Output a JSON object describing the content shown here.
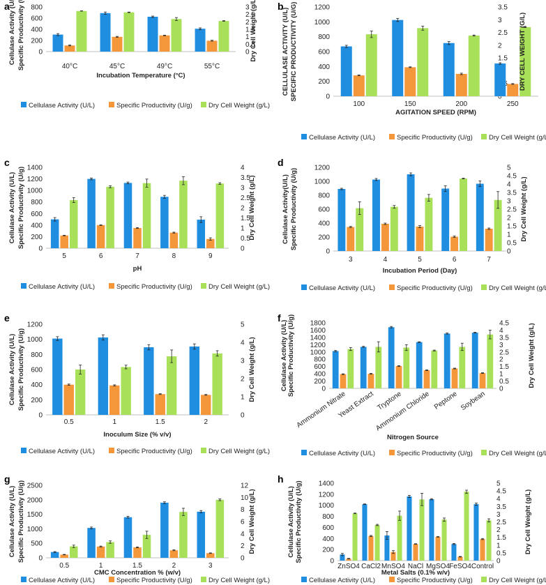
{
  "colors": {
    "cellulase": "#1f8de0",
    "productivity": "#f4963a",
    "dcw": "#a8e05a",
    "axis": "#bfbfbf",
    "err": "#222222"
  },
  "legend": [
    "Cellulase Activity (U/L)",
    "Specific Productivity (U/g)",
    "Dry Cell Weight (g/L)"
  ],
  "chart_data": [
    {
      "type": "bar",
      "panel": "a",
      "categories": [
        "40°C",
        "45°C",
        "49°C",
        "55°C"
      ],
      "xlabel": "Incubation Temperature (°C)",
      "ylabel_left": [
        "Cellulase Activity (U/L)",
        "Specific Productivity (U/g)"
      ],
      "ylabel_right": "Dry Cell Weight (g/L)",
      "ylim_left": [
        0,
        800
      ],
      "yticks_left": [
        "0",
        "200",
        "400",
        "600",
        "800"
      ],
      "ylim_right": [
        0,
        3
      ],
      "yticks_right": [
        "0",
        "0.5",
        "1",
        "1.5",
        "2",
        "2.5",
        "3"
      ],
      "series": [
        {
          "name": "Cellulase Activity (U/L)",
          "axis": "left",
          "values": [
            305,
            690,
            625,
            410
          ],
          "errors": [
            18,
            20,
            12,
            15
          ]
        },
        {
          "name": "Specific Productivity (U/g)",
          "axis": "left",
          "values": [
            110,
            265,
            290,
            195
          ],
          "errors": [
            8,
            8,
            5,
            8
          ]
        },
        {
          "name": "Dry Cell Weight (g/L)",
          "axis": "right",
          "values": [
            2.73,
            2.64,
            2.19,
            2.06
          ],
          "errors": [
            0.01,
            0.02,
            0.1,
            0.02
          ]
        }
      ]
    },
    {
      "type": "bar",
      "panel": "b",
      "categories": [
        "100",
        "150",
        "200",
        "250"
      ],
      "xlabel": "AGITATION SPEED (RPM)",
      "ylabel_left": [
        "CELLULASE ACTIVITY (U/L)",
        "SPECIFIC PRODUCTIVITY (U/G)"
      ],
      "ylabel_right": "DRY CELL WEIGHT (G/L)",
      "ylim_left": [
        0,
        1200
      ],
      "yticks_left": [
        "0",
        "200",
        "400",
        "600",
        "800",
        "1000",
        "1200"
      ],
      "ylim_right": [
        0,
        3.5
      ],
      "yticks_right": [
        "0",
        "0.5",
        "1",
        "1.5",
        "2",
        "2.5",
        "3",
        "3.5"
      ],
      "series": [
        {
          "name": "Cellulase Activity (U/L)",
          "axis": "left",
          "values": [
            670,
            1025,
            715,
            440
          ],
          "errors": [
            15,
            20,
            20,
            10
          ]
        },
        {
          "name": "Specific Productivity (U/g)",
          "axis": "left",
          "values": [
            280,
            390,
            300,
            165
          ],
          "errors": [
            5,
            5,
            10,
            5
          ]
        },
        {
          "name": "Dry Cell Weight (g/L)",
          "axis": "right",
          "values": [
            2.43,
            2.67,
            2.38,
            2.71
          ],
          "errors": [
            0.13,
            0.08,
            0.02,
            0.02
          ]
        }
      ]
    },
    {
      "type": "bar",
      "panel": "c",
      "categories": [
        "5",
        "6",
        "7",
        "8",
        "9"
      ],
      "xlabel": "pH",
      "ylabel_left": [
        "Cellulase Activity (U/L)",
        "Specific Productivity (U/g)"
      ],
      "ylabel_right": "Dry Cell Weight (g/L)",
      "ylim_left": [
        0,
        1400
      ],
      "yticks_left": [
        "0",
        "200",
        "400",
        "600",
        "800",
        "1000",
        "1200",
        "1400"
      ],
      "ylim_right": [
        0,
        4
      ],
      "yticks_right": [
        "0",
        "0.5",
        "1",
        "1.5",
        "2",
        "2.5",
        "3",
        "3.5",
        "4"
      ],
      "series": [
        {
          "name": "Cellulase Activity (U/L)",
          "axis": "left",
          "values": [
            500,
            1200,
            1130,
            890,
            495
          ],
          "errors": [
            30,
            15,
            15,
            25,
            50
          ]
        },
        {
          "name": "Specific Productivity (U/g)",
          "axis": "left",
          "values": [
            220,
            400,
            350,
            270,
            160
          ],
          "errors": [
            5,
            5,
            8,
            8,
            20
          ]
        },
        {
          "name": "Dry Cell Weight (g/L)",
          "axis": "right",
          "values": [
            2.38,
            3.04,
            3.22,
            3.34,
            3.2
          ],
          "errors": [
            0.12,
            0.05,
            0.2,
            0.2,
            0.04
          ]
        }
      ]
    },
    {
      "type": "bar",
      "panel": "d",
      "categories": [
        "3",
        "4",
        "5",
        "6",
        "7"
      ],
      "xlabel": "Incubation Period (Day)",
      "ylabel_left": [
        "Cellulase Activity(U/L)",
        "Specific Productivity (U/g)"
      ],
      "ylabel_right": "Dry Cell Weight (g/L)",
      "ylim_left": [
        0,
        1200
      ],
      "yticks_left": [
        "0",
        "200",
        "400",
        "600",
        "800",
        "1000",
        "1200"
      ],
      "ylim_right": [
        0,
        5
      ],
      "yticks_right": [
        "0",
        "0.5",
        "1",
        "1.5",
        "2",
        "2.5",
        "3",
        "3.5",
        "4",
        "4.5",
        "5"
      ],
      "series": [
        {
          "name": "Cellulase Activity (U/L)",
          "axis": "left",
          "values": [
            890,
            1025,
            1100,
            895,
            965
          ],
          "errors": [
            10,
            15,
            20,
            40,
            40
          ]
        },
        {
          "name": "Specific Productivity (U/g)",
          "axis": "left",
          "values": [
            345,
            390,
            350,
            205,
            320
          ],
          "errors": [
            8,
            10,
            15,
            10,
            10
          ]
        },
        {
          "name": "Dry Cell Weight (g/L)",
          "axis": "right",
          "values": [
            2.56,
            2.64,
            3.18,
            4.33,
            3.05
          ],
          "errors": [
            0.38,
            0.08,
            0.2,
            0.02,
            0.5
          ]
        }
      ]
    },
    {
      "type": "bar",
      "panel": "e",
      "categories": [
        "0.5",
        "1",
        "1.5",
        "2"
      ],
      "xlabel": "Inoculum Size (% v/v)",
      "ylabel_left": [
        "Cellulase Activity (U/L)",
        "Specific Productivity (U/g)"
      ],
      "ylabel_right": "Dry Cell Weight (g/L)",
      "ylim_left": [
        0,
        1200
      ],
      "yticks_left": [
        "0",
        "200",
        "400",
        "600",
        "800",
        "1000",
        "1200"
      ],
      "ylim_right": [
        0,
        5
      ],
      "yticks_right": [
        "0",
        "1",
        "2",
        "3",
        "4",
        "5"
      ],
      "series": [
        {
          "name": "Cellulase Activity (U/L)",
          "axis": "left",
          "values": [
            1010,
            1025,
            895,
            905
          ],
          "errors": [
            25,
            35,
            35,
            35
          ]
        },
        {
          "name": "Specific Productivity (U/g)",
          "axis": "left",
          "values": [
            400,
            390,
            275,
            265
          ],
          "errors": [
            8,
            8,
            5,
            5
          ]
        },
        {
          "name": "Dry Cell Weight (g/L)",
          "axis": "right",
          "values": [
            2.5,
            2.64,
            3.23,
            3.39
          ],
          "errors": [
            0.25,
            0.1,
            0.35,
            0.15
          ]
        }
      ]
    },
    {
      "type": "bar",
      "panel": "f",
      "categories": [
        "Ammonium Nitrate",
        "Yeast Extract",
        "Tryptone",
        "Ammonium Chloride",
        "Peptone",
        "Soybean"
      ],
      "xlabel": "Nitrogen Source",
      "ylabel_left": [
        "Cellulase Activity (U/L)",
        "Specific Productivity (U/g)"
      ],
      "ylabel_right": "Dry Cell Weight (g/L)",
      "ylim_left": [
        0,
        1800
      ],
      "yticks_left": [
        "0",
        "200",
        "400",
        "600",
        "800",
        "1000",
        "1200",
        "1400",
        "1600",
        "1800"
      ],
      "ylim_right": [
        0,
        4.5
      ],
      "yticks_right": [
        "0",
        "0.5",
        "1",
        "1.5",
        "2",
        "2.5",
        "3",
        "3.5",
        "4",
        "4.5"
      ],
      "series": [
        {
          "name": "Cellulase Activity (U/L)",
          "axis": "left",
          "values": [
            1025,
            1140,
            1680,
            1270,
            1505,
            1530
          ],
          "errors": [
            15,
            15,
            20,
            10,
            15,
            10
          ]
        },
        {
          "name": "Specific Productivity (U/g)",
          "axis": "left",
          "values": [
            390,
            400,
            615,
            500,
            545,
            420
          ],
          "errors": [
            10,
            10,
            10,
            10,
            10,
            10
          ]
        },
        {
          "name": "Dry Cell Weight (g/L)",
          "axis": "right",
          "values": [
            2.7,
            2.85,
            2.8,
            2.6,
            2.85,
            3.7
          ],
          "errors": [
            0.1,
            0.35,
            0.2,
            0.03,
            0.25,
            0.3
          ]
        }
      ]
    },
    {
      "type": "bar",
      "panel": "g",
      "categories": [
        "0.5",
        "1",
        "1.5",
        "2",
        "3"
      ],
      "xlabel": "CMC Concentration % (w/v)",
      "ylabel_left": [
        "Cellulase Activity (U/L)",
        "Specific Productivity (U/g)"
      ],
      "ylabel_right": "Dry Cell Weight (g/L)",
      "ylim_left": [
        0,
        2500
      ],
      "yticks_left": [
        "0",
        "500",
        "1000",
        "1500",
        "2000",
        "2500"
      ],
      "ylim_right": [
        0,
        12
      ],
      "yticks_right": [
        "0",
        "2",
        "4",
        "6",
        "8",
        "10",
        "12"
      ],
      "series": [
        {
          "name": "Cellulase Activity (U/L)",
          "axis": "left",
          "values": [
            200,
            1030,
            1400,
            1900,
            1590
          ],
          "errors": [
            15,
            30,
            30,
            30,
            40
          ]
        },
        {
          "name": "Specific Productivity (U/g)",
          "axis": "left",
          "values": [
            110,
            390,
            360,
            260,
            160
          ],
          "errors": [
            8,
            15,
            15,
            15,
            10
          ]
        },
        {
          "name": "Dry Cell Weight (g/L)",
          "axis": "right",
          "values": [
            1.9,
            2.6,
            3.8,
            7.6,
            9.6
          ],
          "errors": [
            0.2,
            0.2,
            0.6,
            0.6,
            0.15
          ]
        }
      ]
    },
    {
      "type": "bar",
      "panel": "h",
      "categories": [
        "ZnSO4",
        "CaCl2",
        "MnSO4",
        "NaCl",
        "MgSO4",
        "FeSO4",
        "Control"
      ],
      "xlabel": "Metal Salts (0.1% w/v)",
      "ylabel_left": [
        "Cellulase Activity (U/L)",
        "Specific Productivity (U/g)"
      ],
      "ylabel_right": "Dry Cell Weight (g/L)",
      "ylim_left": [
        0,
        1400
      ],
      "yticks_left": [
        "0",
        "200",
        "400",
        "600",
        "800",
        "1000",
        "1200",
        "1400"
      ],
      "ylim_right": [
        0,
        5
      ],
      "yticks_right": [
        "0",
        "0.5",
        "1",
        "1.5",
        "2",
        "2.5",
        "3",
        "3.5",
        "4",
        "4.5",
        "5"
      ],
      "series": [
        {
          "name": "Cellulase Activity (U/L)",
          "axis": "left",
          "values": [
            110,
            1020,
            455,
            1160,
            1110,
            300,
            1020
          ],
          "errors": [
            20,
            5,
            70,
            20,
            10,
            10,
            20
          ]
        },
        {
          "name": "Specific Productivity (U/g)",
          "axis": "left",
          "values": [
            35,
            445,
            155,
            300,
            430,
            70,
            390
          ],
          "errors": [
            5,
            10,
            25,
            5,
            5,
            5,
            10
          ]
        },
        {
          "name": "Dry Cell Weight (g/L)",
          "axis": "right",
          "values": [
            3.05,
            2.3,
            2.9,
            3.95,
            2.65,
            4.45,
            2.6
          ],
          "errors": [
            0.02,
            0.04,
            0.3,
            0.4,
            0.1,
            0.1,
            0.1
          ]
        }
      ]
    }
  ]
}
